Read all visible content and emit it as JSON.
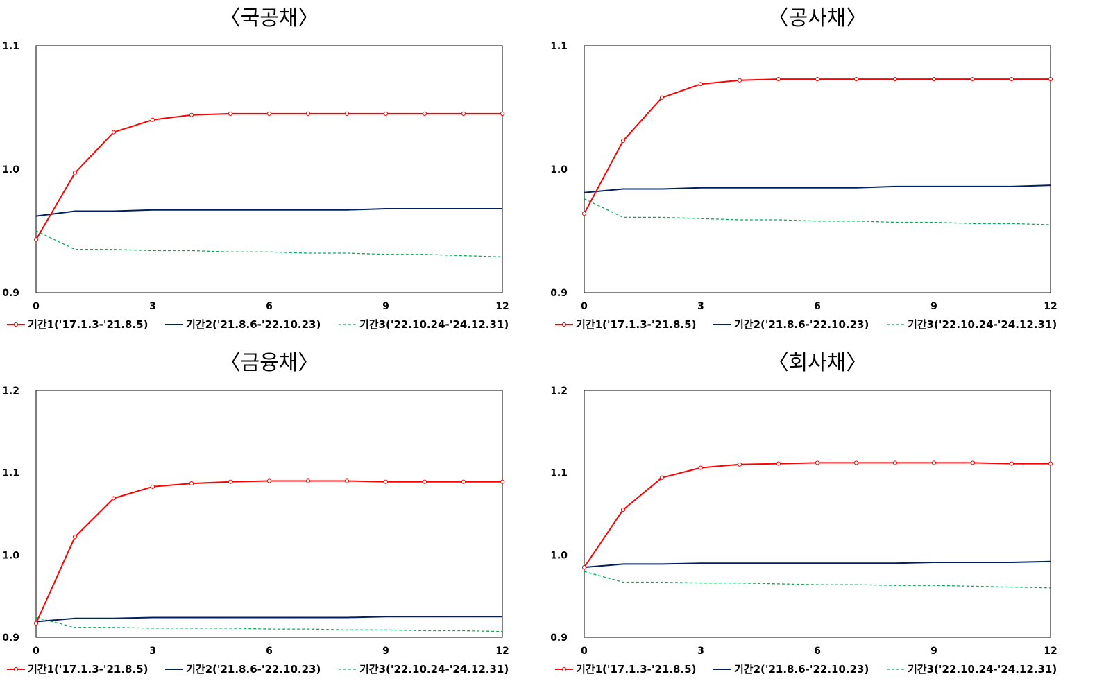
{
  "chart_data": [
    {
      "type": "line",
      "title": "〈국공채〉",
      "x": [
        0,
        1,
        2,
        3,
        4,
        5,
        6,
        7,
        8,
        9,
        10,
        11,
        12
      ],
      "xticks": [
        0,
        3,
        6,
        9,
        12
      ],
      "ylim": [
        0.9,
        1.1
      ],
      "yticks": [
        0.9,
        1.0,
        1.1
      ],
      "ytick_labels": [
        "0.9",
        "1.0",
        "1.1"
      ],
      "series": [
        {
          "name": "기간1('17.1.3-'21.8.5)",
          "color": "#ff0000",
          "style": "solid-marker",
          "values": [
            0.943,
            0.997,
            1.03,
            1.04,
            1.044,
            1.045,
            1.045,
            1.045,
            1.045,
            1.045,
            1.045,
            1.045,
            1.045
          ]
        },
        {
          "name": "기간2('21.8.6-'22.10.23)",
          "color": "#002060",
          "style": "solid",
          "values": [
            0.962,
            0.966,
            0.966,
            0.967,
            0.967,
            0.967,
            0.967,
            0.967,
            0.967,
            0.968,
            0.968,
            0.968,
            0.968
          ]
        },
        {
          "name": "기간3('22.10.24-'24.12.31)",
          "color": "#00b050",
          "style": "dashed",
          "values": [
            0.95,
            0.935,
            0.935,
            0.934,
            0.934,
            0.933,
            0.933,
            0.932,
            0.932,
            0.931,
            0.931,
            0.93,
            0.929
          ]
        }
      ]
    },
    {
      "type": "line",
      "title": "〈공사채〉",
      "x": [
        0,
        1,
        2,
        3,
        4,
        5,
        6,
        7,
        8,
        9,
        10,
        11,
        12
      ],
      "xticks": [
        0,
        3,
        6,
        9,
        12
      ],
      "ylim": [
        0.9,
        1.1
      ],
      "yticks": [
        0.9,
        1.0,
        1.1
      ],
      "ytick_labels": [
        "0.9",
        "1.0",
        "1.1"
      ],
      "series": [
        {
          "name": "기간1('17.1.3-'21.8.5)",
          "color": "#ff0000",
          "style": "solid-marker",
          "values": [
            0.964,
            1.023,
            1.058,
            1.069,
            1.072,
            1.073,
            1.073,
            1.073,
            1.073,
            1.073,
            1.073,
            1.073,
            1.073
          ]
        },
        {
          "name": "기간2('21.8.6-'22.10.23)",
          "color": "#002060",
          "style": "solid",
          "values": [
            0.981,
            0.984,
            0.984,
            0.985,
            0.985,
            0.985,
            0.985,
            0.985,
            0.986,
            0.986,
            0.986,
            0.986,
            0.987
          ]
        },
        {
          "name": "기간3('22.10.24-'24.12.31)",
          "color": "#00b050",
          "style": "dashed",
          "values": [
            0.976,
            0.961,
            0.961,
            0.96,
            0.959,
            0.959,
            0.958,
            0.958,
            0.957,
            0.957,
            0.956,
            0.956,
            0.955
          ]
        }
      ]
    },
    {
      "type": "line",
      "title": "〈금융채〉",
      "x": [
        0,
        1,
        2,
        3,
        4,
        5,
        6,
        7,
        8,
        9,
        10,
        11,
        12
      ],
      "xticks": [
        0,
        3,
        6,
        9,
        12
      ],
      "ylim": [
        0.9,
        1.2
      ],
      "yticks": [
        0.9,
        1.0,
        1.1,
        1.2
      ],
      "ytick_labels": [
        "0.9",
        "1.0",
        "1.1",
        "1.2"
      ],
      "series": [
        {
          "name": "기간1('17.1.3-'21.8.5)",
          "color": "#ff0000",
          "style": "solid-marker",
          "values": [
            0.917,
            1.022,
            1.069,
            1.083,
            1.087,
            1.089,
            1.09,
            1.09,
            1.09,
            1.089,
            1.089,
            1.089,
            1.089
          ]
        },
        {
          "name": "기간2('21.8.6-'22.10.23)",
          "color": "#002060",
          "style": "solid",
          "values": [
            0.919,
            0.923,
            0.923,
            0.924,
            0.924,
            0.924,
            0.924,
            0.924,
            0.924,
            0.925,
            0.925,
            0.925,
            0.925
          ]
        },
        {
          "name": "기간3('22.10.24-'24.12.31)",
          "color": "#00b050",
          "style": "dashed",
          "values": [
            0.924,
            0.912,
            0.912,
            0.911,
            0.911,
            0.911,
            0.91,
            0.91,
            0.909,
            0.909,
            0.908,
            0.908,
            0.907
          ]
        }
      ]
    },
    {
      "type": "line",
      "title": "〈회사채〉",
      "x": [
        0,
        1,
        2,
        3,
        4,
        5,
        6,
        7,
        8,
        9,
        10,
        11,
        12
      ],
      "xticks": [
        0,
        3,
        6,
        9,
        12
      ],
      "ylim": [
        0.9,
        1.2
      ],
      "yticks": [
        0.9,
        1.0,
        1.1,
        1.2
      ],
      "ytick_labels": [
        "0.9",
        "1.0",
        "1.1",
        "1.2"
      ],
      "series": [
        {
          "name": "기간1('17.1.3-'21.8.5)",
          "color": "#ff0000",
          "style": "solid-marker",
          "values": [
            0.985,
            1.055,
            1.094,
            1.106,
            1.11,
            1.111,
            1.112,
            1.112,
            1.112,
            1.112,
            1.112,
            1.111,
            1.111
          ]
        },
        {
          "name": "기간2('21.8.6-'22.10.23)",
          "color": "#002060",
          "style": "solid",
          "values": [
            0.985,
            0.989,
            0.989,
            0.99,
            0.99,
            0.99,
            0.99,
            0.99,
            0.99,
            0.991,
            0.991,
            0.991,
            0.992
          ]
        },
        {
          "name": "기간3('22.10.24-'24.12.31)",
          "color": "#00b050",
          "style": "dashed",
          "values": [
            0.98,
            0.967,
            0.967,
            0.966,
            0.966,
            0.965,
            0.964,
            0.964,
            0.963,
            0.963,
            0.962,
            0.961,
            0.96
          ]
        }
      ]
    }
  ]
}
